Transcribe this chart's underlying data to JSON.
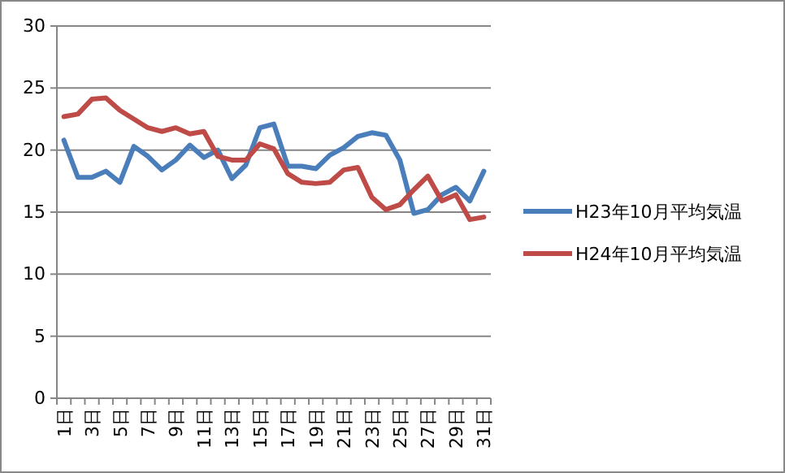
{
  "chart_data": {
    "type": "line",
    "categories": [
      "1日",
      null,
      "3日",
      null,
      "5日",
      null,
      "7日",
      null,
      "9日",
      null,
      "11日",
      null,
      "13日",
      null,
      "15日",
      null,
      "17日",
      null,
      "19日",
      null,
      "21日",
      null,
      "23日",
      null,
      "25日",
      null,
      "27日",
      null,
      "29日",
      null,
      "31日"
    ],
    "series": [
      {
        "name": "H23年10月平均気温",
        "color": "#4a7ebb",
        "values": [
          20.8,
          17.8,
          17.8,
          18.3,
          17.4,
          20.3,
          19.5,
          18.4,
          19.2,
          20.4,
          19.4,
          20.0,
          17.7,
          18.8,
          21.8,
          22.1,
          18.7,
          18.7,
          18.5,
          19.6,
          20.2,
          21.1,
          21.4,
          21.2,
          19.2,
          14.9,
          15.2,
          16.4,
          17.0,
          15.9,
          18.3
        ]
      },
      {
        "name": "H24年10月平均気温",
        "color": "#be4b48",
        "values": [
          22.7,
          22.9,
          24.1,
          24.2,
          23.2,
          22.5,
          21.8,
          21.5,
          21.8,
          21.3,
          21.5,
          19.5,
          19.2,
          19.2,
          20.5,
          20.1,
          18.1,
          17.4,
          17.3,
          17.4,
          18.4,
          18.6,
          16.2,
          15.2,
          15.6,
          16.8,
          17.9,
          15.9,
          16.4,
          14.4,
          14.6
        ]
      }
    ],
    "ylim": [
      0,
      30
    ],
    "yticks": [
      0,
      5,
      10,
      15,
      20,
      25,
      30
    ],
    "grid": "y",
    "legend": "right",
    "marker": "none",
    "line_style": "solid"
  }
}
